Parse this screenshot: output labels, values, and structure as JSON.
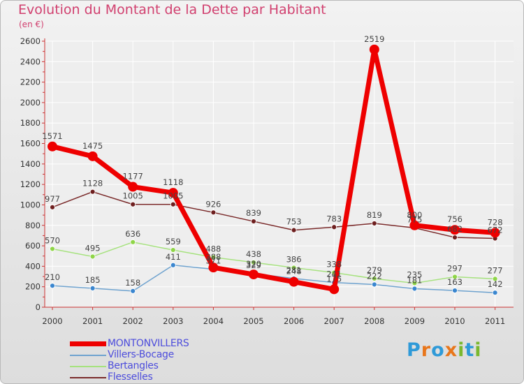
{
  "header": {
    "title": "Evolution du Montant de la Dette par Habitant",
    "unit": "(en €)"
  },
  "logo": {
    "text": "Proxiti",
    "letters": [
      "P",
      "r",
      "o",
      "x",
      "i",
      "t",
      "i"
    ],
    "colors": [
      "#2f9ad8",
      "#e8761b",
      "#2f9ad8",
      "#e8761b",
      "#7ab82f",
      "#2f9ad8",
      "#7ab82f"
    ]
  },
  "chart_data": {
    "type": "line",
    "title": "Evolution du Montant de la Dette par Habitant",
    "ylabel": "(en €)",
    "ylim": [
      0,
      2600
    ],
    "yticks": [
      "0",
      "200",
      "400",
      "600",
      "800",
      "1000",
      "1200",
      "1400",
      "1600",
      "1800",
      "2000",
      "2200",
      "2400",
      "2600"
    ],
    "ytick_values": [
      0,
      200,
      400,
      600,
      800,
      1000,
      1200,
      1400,
      1600,
      1800,
      2000,
      2200,
      2400,
      2600
    ],
    "x": [
      "2000",
      "2001",
      "2002",
      "2003",
      "2004",
      "2005",
      "2006",
      "2007",
      "2008",
      "2009",
      "2010",
      "2011"
    ],
    "grid": true,
    "legend": "bottom-left",
    "series": [
      {
        "name": "Flesselles",
        "color": "#7a2a2a",
        "dot": "#6e1f1f",
        "width": 1.5,
        "radius": 3.5,
        "values": [
          977,
          1128,
          1005,
          1005,
          926,
          839,
          753,
          783,
          819,
          775,
          682,
          672
        ],
        "labels": [
          "977",
          "1128",
          "1005",
          "1005",
          "926",
          "839",
          "753",
          "783",
          "819",
          "775",
          "682",
          "672"
        ]
      },
      {
        "name": "Bertangles",
        "color": "#a6e27e",
        "dot": "#8fd548",
        "width": 1.5,
        "radius": 3.5,
        "values": [
          570,
          495,
          636,
          559,
          488,
          438,
          386,
          338,
          279,
          235,
          297,
          277
        ],
        "labels": [
          "570",
          "495",
          "636",
          "559",
          "488",
          "438",
          "386",
          "338",
          "279",
          "235",
          "297",
          "277"
        ]
      },
      {
        "name": "Villers-Bocage",
        "color": "#6fa3cf",
        "dot": "#3a86cf",
        "width": 1.5,
        "radius": 3.5,
        "values": [
          210,
          185,
          158,
          411,
          371,
          329,
          281,
          241,
          222,
          181,
          163,
          142
        ],
        "labels": [
          "210",
          "185",
          "158",
          "411",
          "371",
          "329",
          "281",
          "241",
          "222",
          "181",
          "163",
          "142"
        ]
      },
      {
        "name": "MONTONVILLERS",
        "color": "#ee0000",
        "dot": "#ee0000",
        "width": 7,
        "radius": 7,
        "values": [
          1571,
          1475,
          1177,
          1118,
          388,
          320,
          248,
          175,
          2519,
          800,
          756,
          728
        ],
        "labels": [
          "1571",
          "1475",
          "1177",
          "1118",
          "388",
          "320",
          "248",
          "175",
          "2519",
          "800",
          "756",
          "728"
        ]
      }
    ],
    "legend_order": [
      "MONTONVILLERS",
      "Villers-Bocage",
      "Bertangles",
      "Flesselles"
    ]
  },
  "legend_items": [
    {
      "label": "MONTONVILLERS",
      "color": "#ee0000",
      "thickness": 7
    },
    {
      "label": "Villers-Bocage",
      "color": "#6fa3cf",
      "thickness": 2
    },
    {
      "label": "Bertangles",
      "color": "#a6e27e",
      "thickness": 2
    },
    {
      "label": "Flesselles",
      "color": "#7a2a2a",
      "thickness": 2
    }
  ]
}
